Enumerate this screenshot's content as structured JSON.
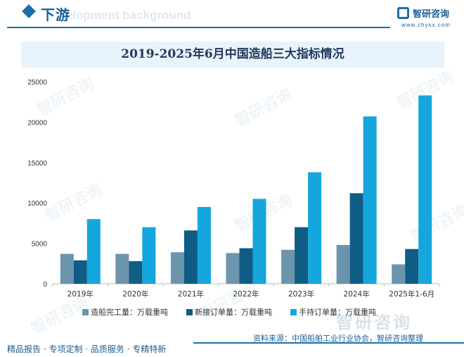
{
  "header": {
    "section_title": "下游",
    "bg_text": "elopment background"
  },
  "logo": {
    "name": "智研咨询",
    "url": "www.chyxx.com"
  },
  "watermark": "智研咨询",
  "chart_data": {
    "type": "bar",
    "title": "2019-2025年6月中国造船三大指标情况",
    "categories": [
      "2019年",
      "2020年",
      "2021年",
      "2022年",
      "2023年",
      "2024年",
      "2025年1-6月"
    ],
    "series": [
      {
        "name": "造船完工量：万载重吨",
        "color": "#6b95ad",
        "values": [
          3700,
          3700,
          3900,
          3800,
          4200,
          4800,
          2400
        ]
      },
      {
        "name": "新接订单量：万载重吨",
        "color": "#0f5c84",
        "values": [
          2900,
          2800,
          6600,
          4400,
          7000,
          11200,
          4300
        ]
      },
      {
        "name": "手持订单量：万载重吨",
        "color": "#14a6dc",
        "values": [
          8000,
          7000,
          9500,
          10500,
          13800,
          20700,
          23300
        ]
      }
    ],
    "y_ticks": [
      "0",
      "5000",
      "10000",
      "15000",
      "20000",
      "25000"
    ],
    "ylim": [
      0,
      25000
    ],
    "grid": false,
    "legend_position": "bottom"
  },
  "source_text": "资料来源：中国船舶工业行业协会，智研咨询整理",
  "footer": {
    "slogan": "精品报告 · 专项定制 · 品质服务 · 专精特新"
  }
}
